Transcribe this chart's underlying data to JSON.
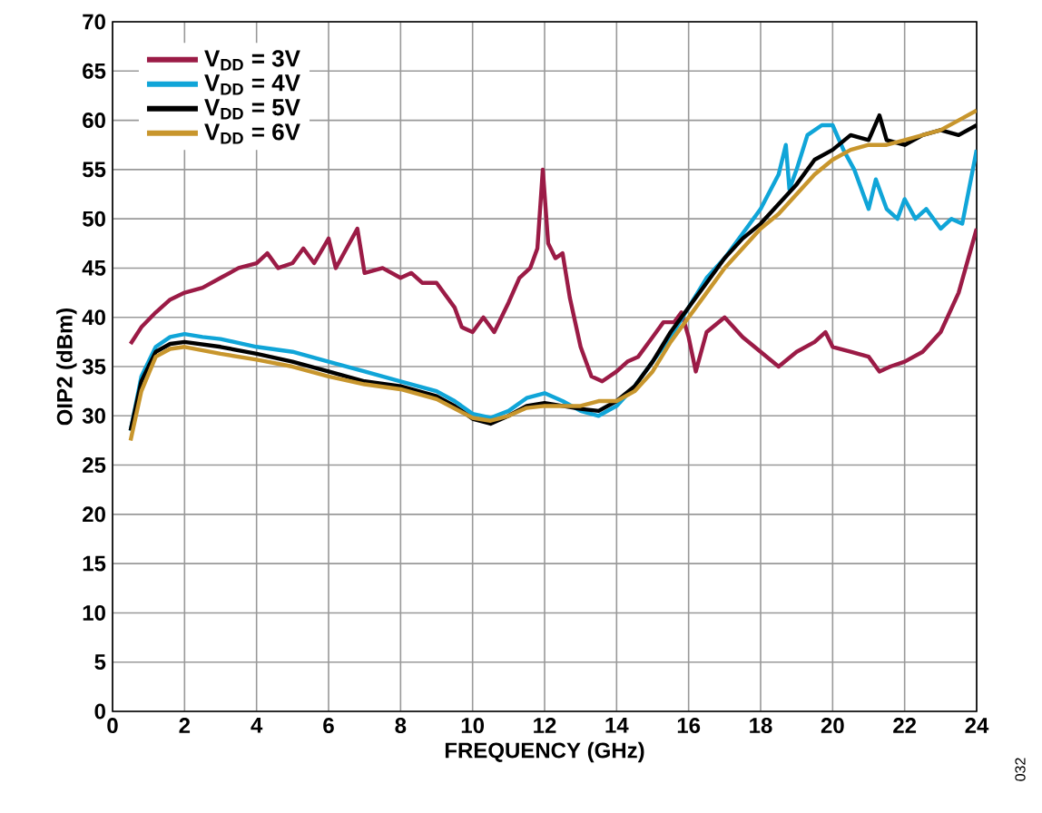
{
  "chart_data": {
    "type": "line",
    "xlabel": "FREQUENCY  (GHz)",
    "ylabel": "OIP2 (dBm)",
    "xlim": [
      0,
      24
    ],
    "ylim": [
      0,
      70
    ],
    "xticks": [
      0,
      2,
      4,
      6,
      8,
      10,
      12,
      14,
      16,
      18,
      20,
      22,
      24
    ],
    "yticks": [
      0,
      5,
      10,
      15,
      20,
      25,
      30,
      35,
      40,
      45,
      50,
      55,
      60,
      65,
      70
    ],
    "grid": true,
    "legend": "top left",
    "line_style": "solid",
    "annotations": [
      "032"
    ],
    "series": [
      {
        "name": "V$_{DD}$ = 3V",
        "color": "#9b1b46",
        "x": [
          0.5,
          0.8,
          1.2,
          1.6,
          2,
          2.5,
          3,
          3.5,
          4,
          4.3,
          4.6,
          5,
          5.3,
          5.6,
          6,
          6.2,
          6.5,
          6.8,
          7,
          7.5,
          8,
          8.3,
          8.6,
          9,
          9.5,
          9.7,
          10,
          10.3,
          10.6,
          11,
          11.3,
          11.6,
          11.8,
          11.95,
          12.1,
          12.3,
          12.5,
          12.7,
          13,
          13.3,
          13.6,
          14,
          14.3,
          14.6,
          15,
          15.3,
          15.6,
          15.8,
          16,
          16.2,
          16.5,
          17,
          17.5,
          18,
          18.5,
          19,
          19.5,
          19.8,
          20,
          20.5,
          21,
          21.3,
          21.6,
          22,
          22.5,
          23,
          23.5,
          24
        ],
        "values": [
          37.3,
          39,
          40.5,
          41.8,
          42.5,
          43,
          44,
          45,
          45.5,
          46.5,
          45,
          45.5,
          47,
          45.5,
          48,
          45,
          47,
          49,
          44.5,
          45,
          44,
          44.5,
          43.5,
          43.5,
          41,
          39,
          38.5,
          40,
          38.5,
          41.5,
          44,
          45,
          47,
          55,
          47.5,
          46,
          46.5,
          42,
          37,
          34,
          33.5,
          34.5,
          35.5,
          36,
          38,
          39.5,
          39.5,
          40.5,
          38,
          34.5,
          38.5,
          40,
          38,
          36.5,
          35,
          36.5,
          37.5,
          38.5,
          37,
          36.5,
          36,
          34.5,
          35,
          35.5,
          36.5,
          38.5,
          42.5,
          49
        ]
      },
      {
        "name": "V$_{DD}$ = 4V",
        "color": "#10a5d8",
        "x": [
          0.5,
          0.8,
          1.2,
          1.6,
          2,
          2.5,
          3,
          4,
          5,
          6,
          7,
          8,
          9,
          9.5,
          10,
          10.5,
          11,
          11.5,
          12,
          12.5,
          13,
          13.5,
          14,
          14.5,
          15,
          15.5,
          16,
          16.5,
          17,
          17.5,
          18,
          18.5,
          18.7,
          18.8,
          19,
          19.3,
          19.7,
          20,
          20.3,
          20.6,
          21,
          21.2,
          21.5,
          21.8,
          22,
          22.3,
          22.6,
          23,
          23.3,
          23.6,
          24
        ],
        "values": [
          28.5,
          34,
          37,
          38,
          38.3,
          38,
          37.8,
          37,
          36.5,
          35.5,
          34.5,
          33.5,
          32.5,
          31.5,
          30.2,
          29.8,
          30.5,
          31.8,
          32.3,
          31.5,
          30.5,
          30,
          31,
          33,
          35.5,
          38,
          41,
          44,
          46,
          48.5,
          51,
          54.5,
          57.5,
          53,
          55,
          58.5,
          59.5,
          59.5,
          57,
          55,
          51,
          54,
          51,
          50,
          52,
          50,
          51,
          49,
          50,
          49.5,
          57
        ]
      },
      {
        "name": "V$_{DD}$ = 5V",
        "color": "#000000",
        "x": [
          0.5,
          0.8,
          1.2,
          1.6,
          2,
          3,
          4,
          5,
          6,
          7,
          8,
          9,
          9.5,
          10,
          10.5,
          11,
          11.5,
          12,
          12.5,
          13,
          13.5,
          14,
          14.5,
          15,
          15.5,
          16,
          16.5,
          17,
          17.5,
          18,
          18.5,
          19,
          19.5,
          20,
          20.5,
          21,
          21.3,
          21.5,
          22,
          22.5,
          23,
          23.5,
          24
        ],
        "values": [
          28.5,
          33.5,
          36.5,
          37.3,
          37.5,
          37,
          36.3,
          35.5,
          34.5,
          33.5,
          33,
          32,
          31,
          29.7,
          29.2,
          30,
          31,
          31.3,
          31,
          30.7,
          30.5,
          31.5,
          33,
          35.5,
          38.5,
          41,
          43.5,
          46,
          48,
          49.5,
          51.5,
          53.5,
          56,
          57,
          58.5,
          58,
          60.5,
          58,
          57.5,
          58.5,
          59,
          58.5,
          59.5
        ]
      },
      {
        "name": "V$_{DD}$ = 6V",
        "color": "#c8962d",
        "x": [
          0.5,
          0.8,
          1.2,
          1.6,
          2,
          3,
          4,
          5,
          6,
          7,
          8,
          9,
          10,
          10.5,
          11,
          11.5,
          12,
          12.5,
          13,
          13.5,
          14,
          14.5,
          15,
          15.5,
          16,
          16.5,
          17,
          17.5,
          18,
          18.5,
          19,
          19.5,
          20,
          20.5,
          21,
          21.5,
          22,
          22.5,
          23,
          23.5,
          24
        ],
        "values": [
          27.5,
          32.5,
          36,
          36.8,
          37,
          36.3,
          35.7,
          35,
          34,
          33.2,
          32.7,
          31.7,
          29.8,
          29.5,
          30,
          30.8,
          31,
          31,
          31,
          31.5,
          31.5,
          32.5,
          34.5,
          37.5,
          40,
          42.5,
          45,
          47,
          49,
          50.5,
          52.5,
          54.5,
          56,
          57,
          57.5,
          57.5,
          58,
          58.5,
          59,
          60,
          61
        ]
      }
    ]
  }
}
